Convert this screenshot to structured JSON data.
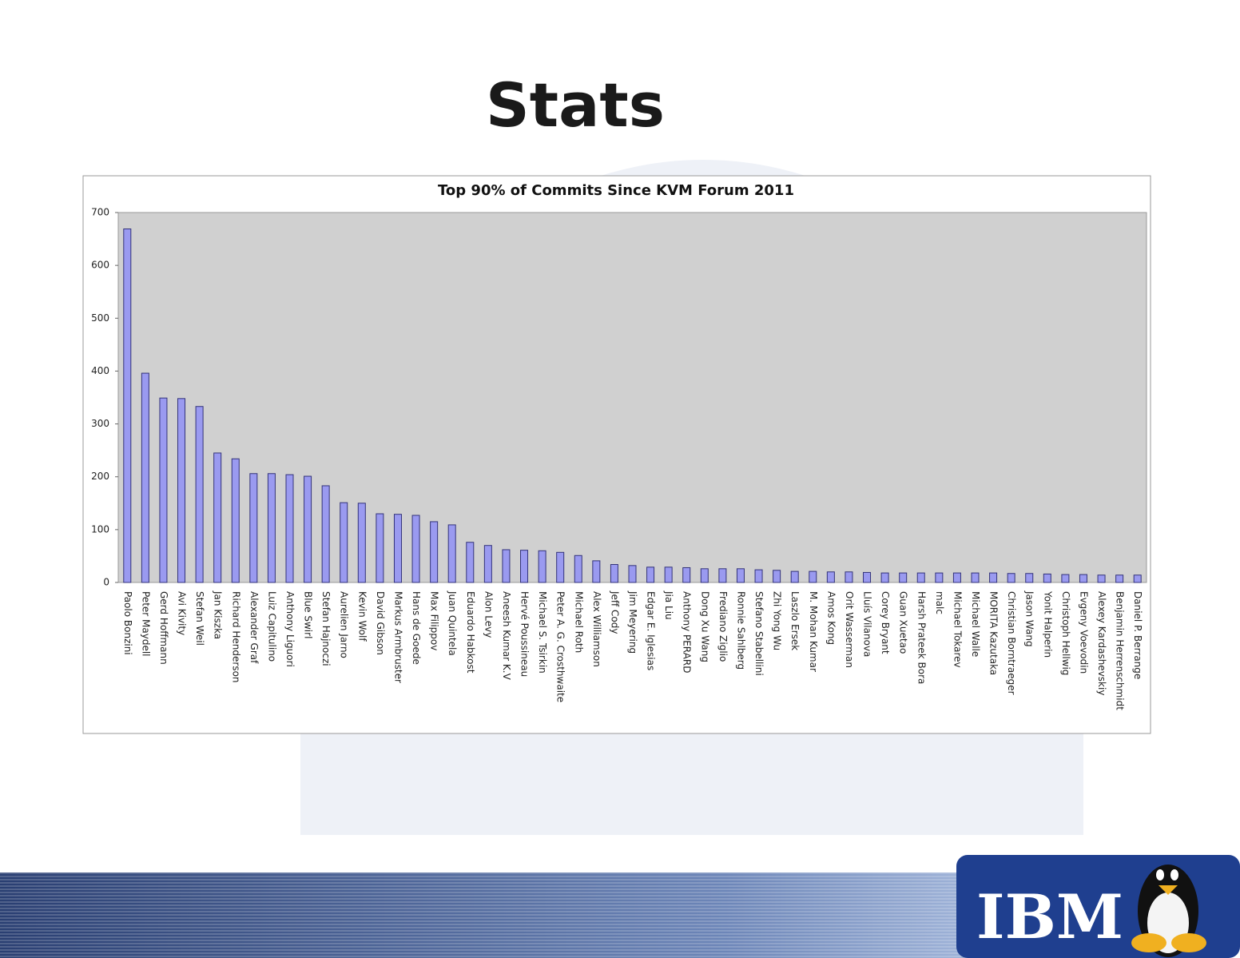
{
  "slide_title": "Stats",
  "logo": "IBM",
  "chart_data": {
    "type": "bar",
    "title": "Top 90% of Commits Since KVM Forum 2011",
    "categories": [
      "Paolo Bonzini",
      "Peter Maydell",
      "Gerd Hoffmann",
      "Avi Kivity",
      "Stefan Weil",
      "Jan Kiszka",
      "Richard Henderson",
      "Alexander Graf",
      "Luiz Capitulino",
      "Anthony Liguori",
      "Blue Swirl",
      "Stefan Hajnoczi",
      "Aurelien Jarno",
      "Kevin Wolf",
      "David Gibson",
      "Markus Armbruster",
      "Hans de Goede",
      "Max Filippov",
      "Juan Quintela",
      "Eduardo Habkost",
      "Alon Levy",
      "Aneesh Kumar K.V",
      "Hervé Poussineau",
      "Michael S. Tsirkin",
      "Peter A. G. Crosthwaite",
      "Michael Roth",
      "Alex Williamson",
      "Jeff Cody",
      "Jim Meyering",
      "Edgar E. Iglesias",
      "Jia Liu",
      "Anthony PERARD",
      "Dong Xu Wang",
      "Frediano Ziglio",
      "Ronnie Sahlberg",
      "Stefano Stabellini",
      "Zhi Yong Wu",
      "Laszlo Ersek",
      "M. Mohan Kumar",
      "Amos Kong",
      "Orit Wasserman",
      "Lluís Vilanova",
      "Corey Bryant",
      "Guan Xuetao",
      "Harsh Prateek Bora",
      "malc",
      "Michael Tokarev",
      "Michael Walle",
      "MORITA Kazutaka",
      "Christian Borntraeger",
      "Jason Wang",
      "Yonit Halperin",
      "Christoph Hellwig",
      "Evgeny Voevodin",
      "Alexey Kardashevskiy",
      "Benjamin Herrenschmidt",
      "Daniel P. Berrange"
    ],
    "values": [
      669,
      396,
      349,
      348,
      333,
      245,
      234,
      206,
      206,
      204,
      201,
      183,
      151,
      150,
      130,
      129,
      127,
      115,
      109,
      76,
      70,
      62,
      61,
      60,
      57,
      51,
      41,
      34,
      32,
      29,
      29,
      28,
      26,
      26,
      26,
      24,
      23,
      21,
      21,
      20,
      20,
      19,
      18,
      18,
      18,
      18,
      18,
      18,
      18,
      17,
      17,
      16,
      15,
      15,
      14,
      14,
      14
    ],
    "color": "#9a9af0",
    "ylim": [
      0,
      700
    ],
    "yticks": [
      0,
      100,
      200,
      300,
      400,
      500,
      600,
      700
    ],
    "grid": false
  }
}
